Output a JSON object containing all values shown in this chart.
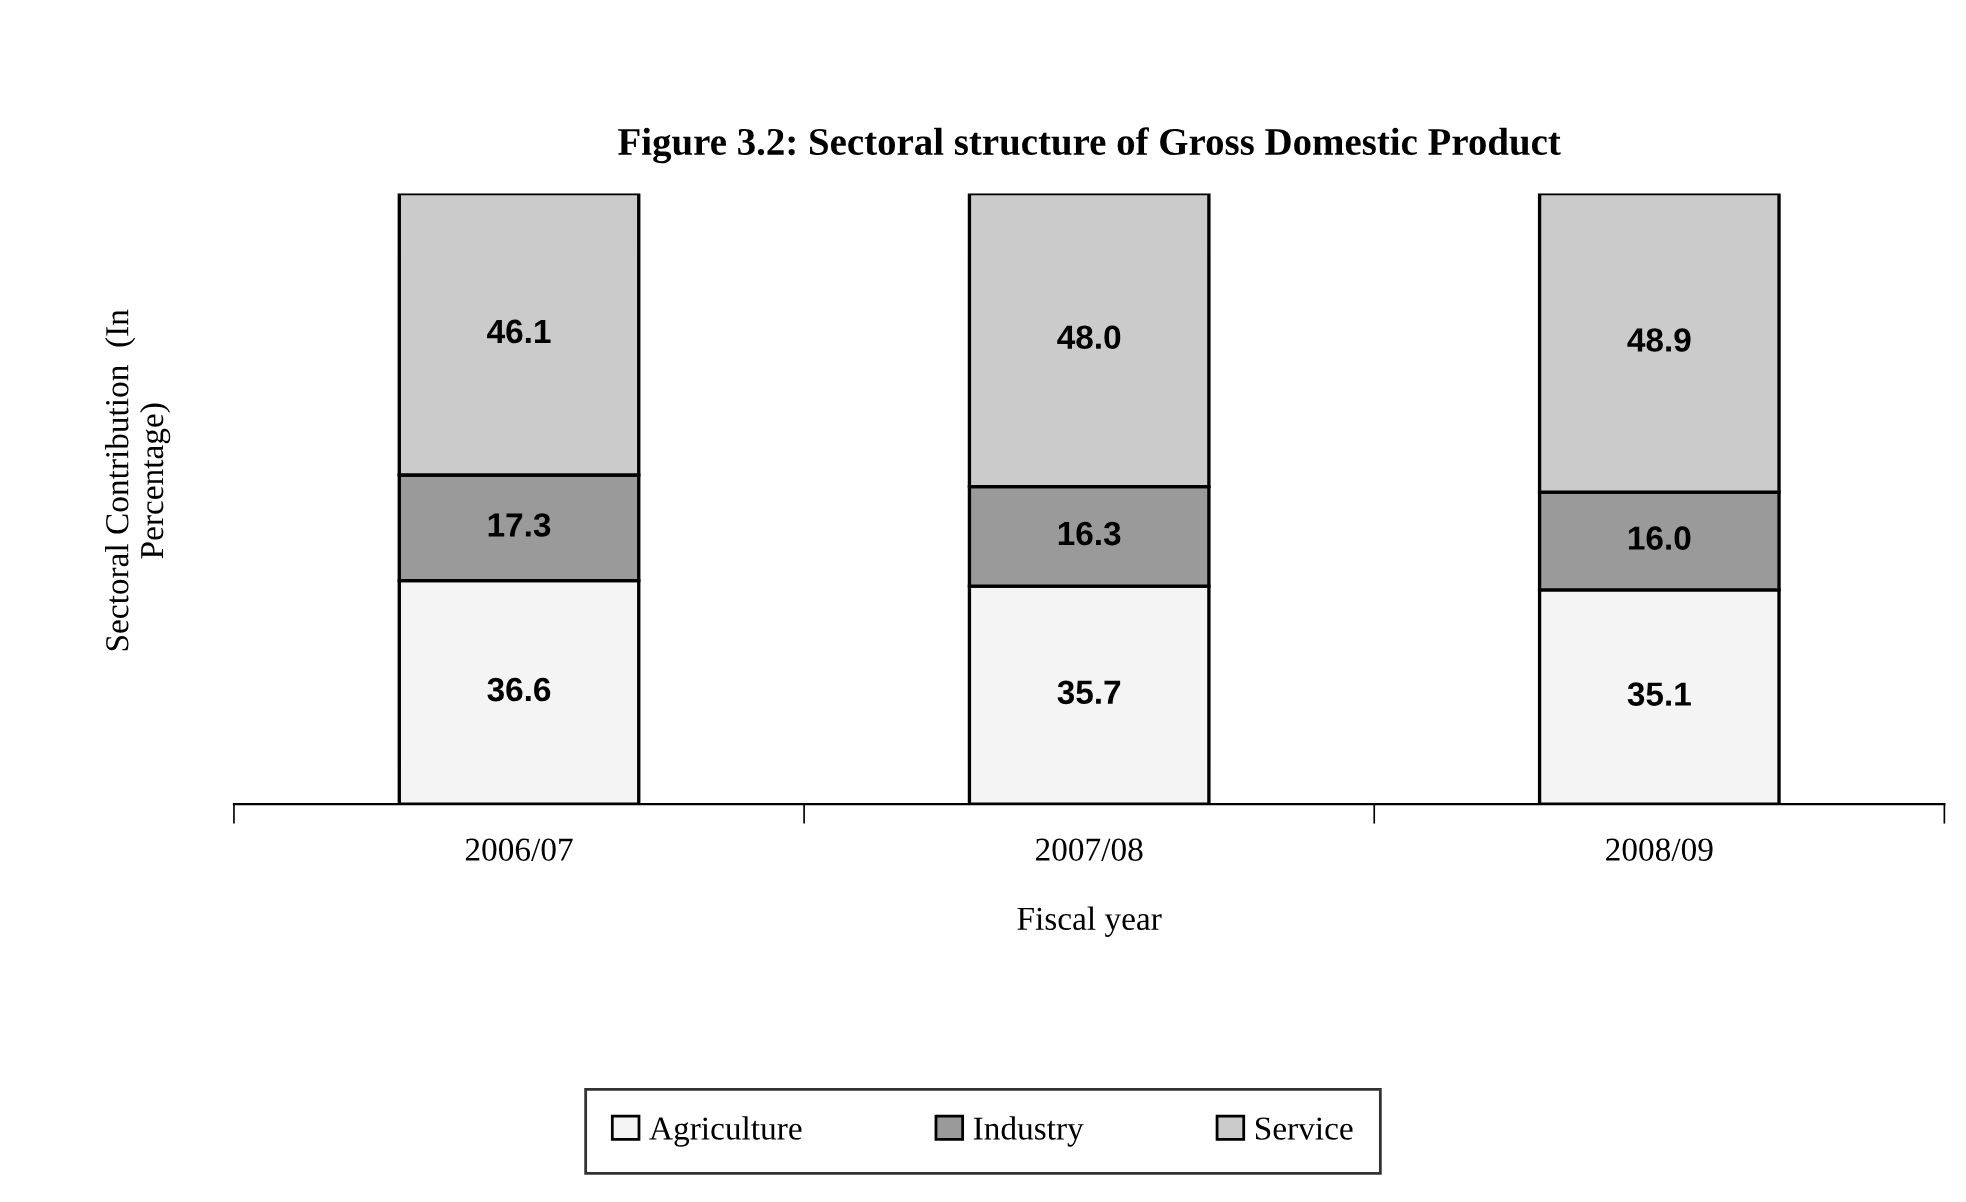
{
  "chart_data": {
    "type": "bar",
    "stacked": true,
    "title": "Figure 3.2: Sectoral structure of Gross Domestic Product",
    "xlabel": "Fiscal year",
    "ylabel": "Sectoral Contribution  (In Percentage)",
    "categories": [
      "2006/07",
      "2007/08",
      "2008/09"
    ],
    "series": [
      {
        "name": "Agriculture",
        "color": "#f4f4f4",
        "values": [
          36.6,
          35.7,
          35.1
        ],
        "value_labels": [
          "36.6",
          "35.7",
          "35.1"
        ]
      },
      {
        "name": "Industry",
        "color": "#9a9a9a",
        "values": [
          17.3,
          16.3,
          16.0
        ],
        "value_labels": [
          "17.3",
          "16.3",
          "16.0"
        ]
      },
      {
        "name": "Service",
        "color": "#cbcbcb",
        "values": [
          46.1,
          48.0,
          48.9
        ],
        "value_labels": [
          "46.1",
          "48.0",
          "48.9"
        ]
      }
    ],
    "legend": "bottom",
    "grid": false
  }
}
